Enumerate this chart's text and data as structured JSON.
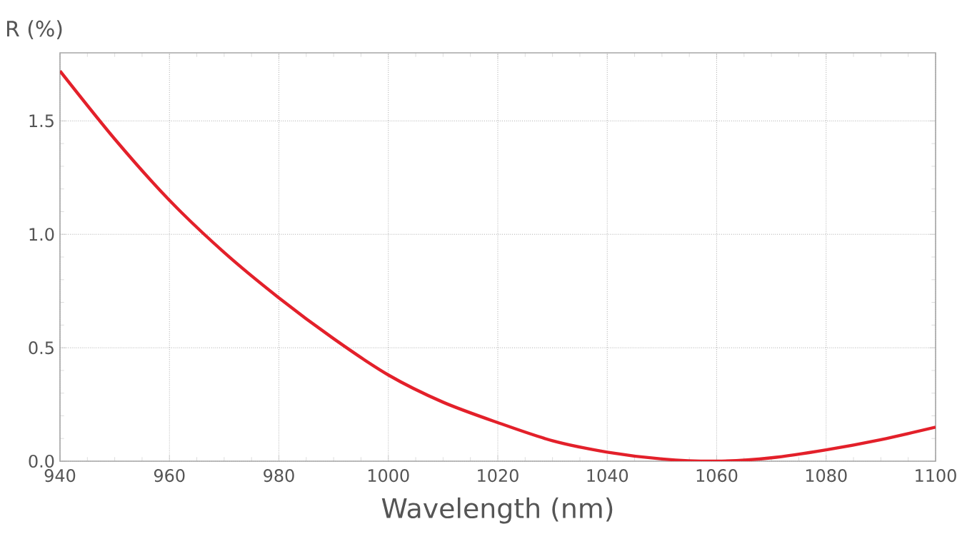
{
  "chart_data": {
    "type": "line",
    "xlabel": "Wavelength (nm)",
    "ylabel": "R (%)",
    "x": [
      940,
      950,
      960,
      970,
      980,
      990,
      1000,
      1010,
      1020,
      1030,
      1040,
      1050,
      1060,
      1070,
      1080,
      1090,
      1100
    ],
    "series": [
      {
        "color": "#e3202a",
        "values": [
          1.72,
          1.42,
          1.15,
          0.92,
          0.72,
          0.54,
          0.38,
          0.26,
          0.17,
          0.09,
          0.04,
          0.01,
          0.0,
          0.015,
          0.05,
          0.095,
          0.15
        ]
      }
    ],
    "xlim": [
      940,
      1100
    ],
    "ylim": [
      0,
      1.8
    ],
    "xticks": [
      940,
      960,
      980,
      1000,
      1020,
      1040,
      1060,
      1080,
      1100
    ],
    "yticks": [
      {
        "value": 0,
        "label": "0.0"
      },
      {
        "value": 0.5,
        "label": "0.5"
      },
      {
        "value": 1.0,
        "label": "1.0"
      },
      {
        "value": 1.5,
        "label": "1.5"
      }
    ],
    "grid": true,
    "marker": "none",
    "line_style": "solid"
  }
}
